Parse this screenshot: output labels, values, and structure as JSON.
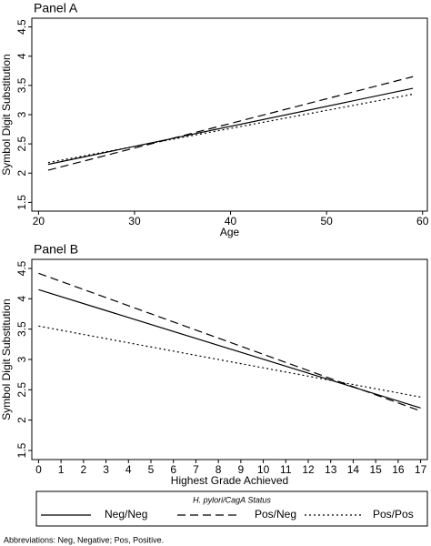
{
  "chart_data": [
    {
      "type": "line",
      "title": "Panel A",
      "x_label": "Age",
      "y_label": "Symbol Digit Substitution",
      "x": [
        21,
        59
      ],
      "series": [
        {
          "name": "Neg/Neg",
          "color": "#000000",
          "dash": "solid",
          "values": [
            2.15,
            3.45
          ]
        },
        {
          "name": "Pos/Neg",
          "color": "#000000",
          "dash": "dashed",
          "values": [
            2.05,
            3.65
          ]
        },
        {
          "name": "Pos/Pos",
          "color": "#000000",
          "dash": "dotted",
          "values": [
            2.18,
            3.35
          ]
        }
      ],
      "xlim": [
        19.3,
        60.5
      ],
      "xticks": [
        20,
        30,
        40,
        50,
        60
      ],
      "ylim": [
        1.35,
        4.65
      ],
      "yticks": [
        1.5,
        2,
        2.5,
        3,
        3.5,
        4,
        4.5
      ]
    },
    {
      "type": "line",
      "title": "Panel B",
      "x_label": "Highest Grade Achieved",
      "y_label": "Symbol Digit Substitution",
      "x": [
        0,
        17
      ],
      "series": [
        {
          "name": "Neg/Neg",
          "color": "#000000",
          "dash": "solid",
          "values": [
            4.15,
            2.2
          ]
        },
        {
          "name": "Pos/Neg",
          "color": "#000000",
          "dash": "dashed",
          "values": [
            4.42,
            2.15
          ]
        },
        {
          "name": "Pos/Pos",
          "color": "#000000",
          "dash": "dotted",
          "values": [
            3.55,
            2.38
          ]
        }
      ],
      "xlim": [
        -0.3,
        17.3
      ],
      "xticks": [
        0,
        1,
        2,
        3,
        4,
        5,
        6,
        7,
        8,
        9,
        10,
        11,
        12,
        13,
        14,
        15,
        16,
        17
      ],
      "ylim": [
        1.35,
        4.65
      ],
      "yticks": [
        1.5,
        2,
        2.5,
        3,
        3.5,
        4,
        4.5
      ]
    }
  ],
  "legend": {
    "title": "H. pylori/CagA Status"
  },
  "footnote": "Abbreviations: Neg, Negative; Pos, Positive."
}
